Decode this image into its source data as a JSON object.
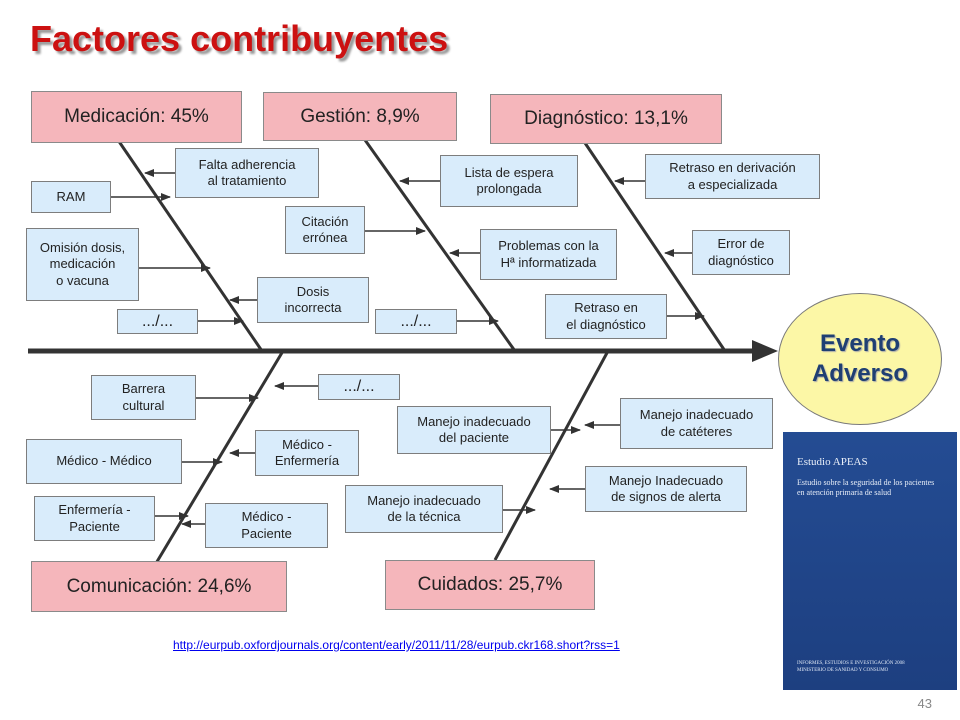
{
  "title": "Factores contribuyentes",
  "outcome": "Evento\nAdverso",
  "categories": {
    "medicacion": "Medicación: 45%",
    "gestion": "Gestión: 8,9%",
    "diagnostico": "Diagnóstico: 13,1%",
    "comunicacion": "Comunicación: 24,6%",
    "cuidados": "Cuidados: 25,7%"
  },
  "causes": {
    "medicacion": [
      "Falta adherencia\nal tratamiento",
      "RAM",
      "Omisión dosis,\nmedicación\no vacuna",
      "Dosis\nincorrecta",
      ".../..."
    ],
    "gestion": [
      "Lista de espera\nprolongada",
      "Citación\nerrónea",
      "Problemas con la\nHª informatizada",
      ".../..."
    ],
    "diagnostico": [
      "Retraso en derivación\na especializada",
      "Error de\ndiagnóstico",
      "Retraso en\nel diagnóstico"
    ],
    "comunicacion": [
      "Barrera\ncultural",
      ".../...",
      "Médico - Médico",
      "Médico -\nEnfermería",
      "Enfermería -\nPaciente",
      "Médico -\nPaciente"
    ],
    "cuidados": [
      "Manejo inadecuado\ndel paciente",
      "Manejo inadecuado\nde catéteres",
      "Manejo Inadecuado\nde signos de alerta",
      "Manejo inadecuado\nde la técnica"
    ]
  },
  "book": {
    "title": "Estudio APEAS",
    "subtitle": "Estudio sobre la seguridad de los pacientes en atención primaria de salud",
    "footer": "INFORMES, ESTUDIOS E INVESTIGACIÓN 2008\nMINISTERIO DE SANIDAD Y CONSUMO"
  },
  "source_link": "http://eurpub.oxfordjournals.org/content/early/2011/11/28/eurpub.ckr168.short?rss=1",
  "page_number": "43",
  "colors": {
    "title": "#cc1111",
    "category_fill": "#f5b6bb",
    "cause_fill": "#d9ecfb",
    "outcome_fill": "#fcf7a6",
    "outcome_text": "#1f3f73",
    "book_cover": "#1d3f80"
  }
}
